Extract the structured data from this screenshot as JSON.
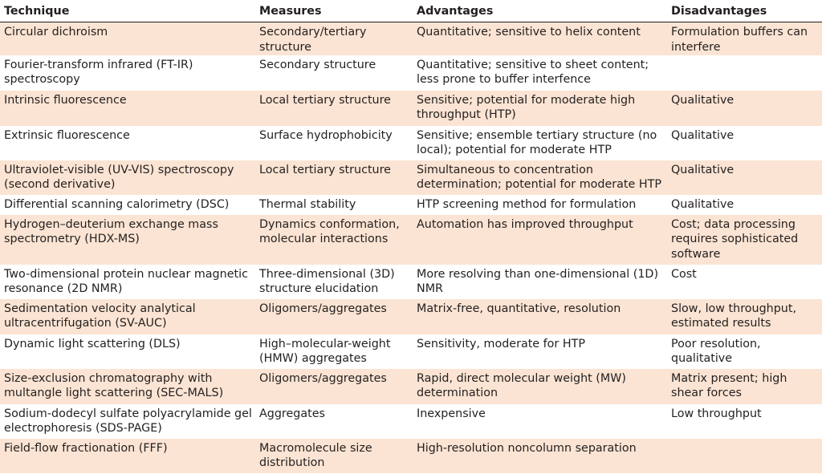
{
  "table": {
    "headers": [
      "Technique",
      "Measures",
      "Advantages",
      "Disadvantages"
    ],
    "rows": [
      [
        "Circular dichroism",
        "Secondary/tertiary structure",
        "Quantitative; sensitive to helix content",
        "Formulation buffers can interfere"
      ],
      [
        "Fourier-transform infrared (FT-IR) spectroscopy",
        "Secondary structure",
        "Quantitative; sensitive to sheet content; less prone to buffer interfence",
        ""
      ],
      [
        "Intrinsic fluorescence",
        "Local tertiary structure",
        "Sensitive; potential for moderate high throughput (HTP)",
        "Qualitative"
      ],
      [
        "Extrinsic fluorescence",
        "Surface hydrophobicity",
        "Sensitive; ensemble tertiary structure (no local); potential for moderate HTP",
        "Qualitative"
      ],
      [
        "Ultraviolet-visible (UV-VIS) spectroscopy (second derivative)",
        "Local tertiary structure",
        "Simultaneous to concentration determination; potential for moderate HTP",
        "Qualitative"
      ],
      [
        "Differential scanning calorimetry (DSC)",
        "Thermal stability",
        "HTP screening method for formulation",
        "Qualitative"
      ],
      [
        "Hydrogen–deuterium exchange mass spectrometry (HDX-MS)",
        "Dynamics conformation, molecular interactions",
        "Automation has improved throughput",
        "Cost; data processing requires sophisticated software"
      ],
      [
        "Two-dimensional protein nuclear magnetic resonance (2D NMR)",
        "Three-dimensional (3D) structure elucidation",
        "More resolving than one-dimensional (1D) NMR",
        "Cost"
      ],
      [
        "Sedimentation velocity analytical ultracentrifugation (SV-AUC)",
        "Oligomers/aggregates",
        "Matrix-free, quantitative, resolution",
        "Slow, low throughput, estimated results"
      ],
      [
        "Dynamic light scattering (DLS)",
        "High–molecular-weight (HMW) aggregates",
        "Sensitivity, moderate for HTP",
        "Poor resolution, qualitative"
      ],
      [
        "Size-exclusion chromatography with multangle light scattering (SEC-MALS)",
        "Oligomers/aggregates",
        "Rapid, direct molecular weight (MW) determination",
        "Matrix present; high shear forces"
      ],
      [
        "Sodium-dodecyl sulfate polyacrylamide gel electrophoresis (SDS-PAGE)",
        "Aggregates",
        "Inexpensive",
        "Low throughput"
      ],
      [
        "Field-flow fractionation (FFF)",
        "Macromolecule size distribution",
        "High-resolution noncolumn separation",
        ""
      ]
    ]
  },
  "colors": {
    "shaded_row": "#fbe4d3",
    "text": "#231f20"
  }
}
